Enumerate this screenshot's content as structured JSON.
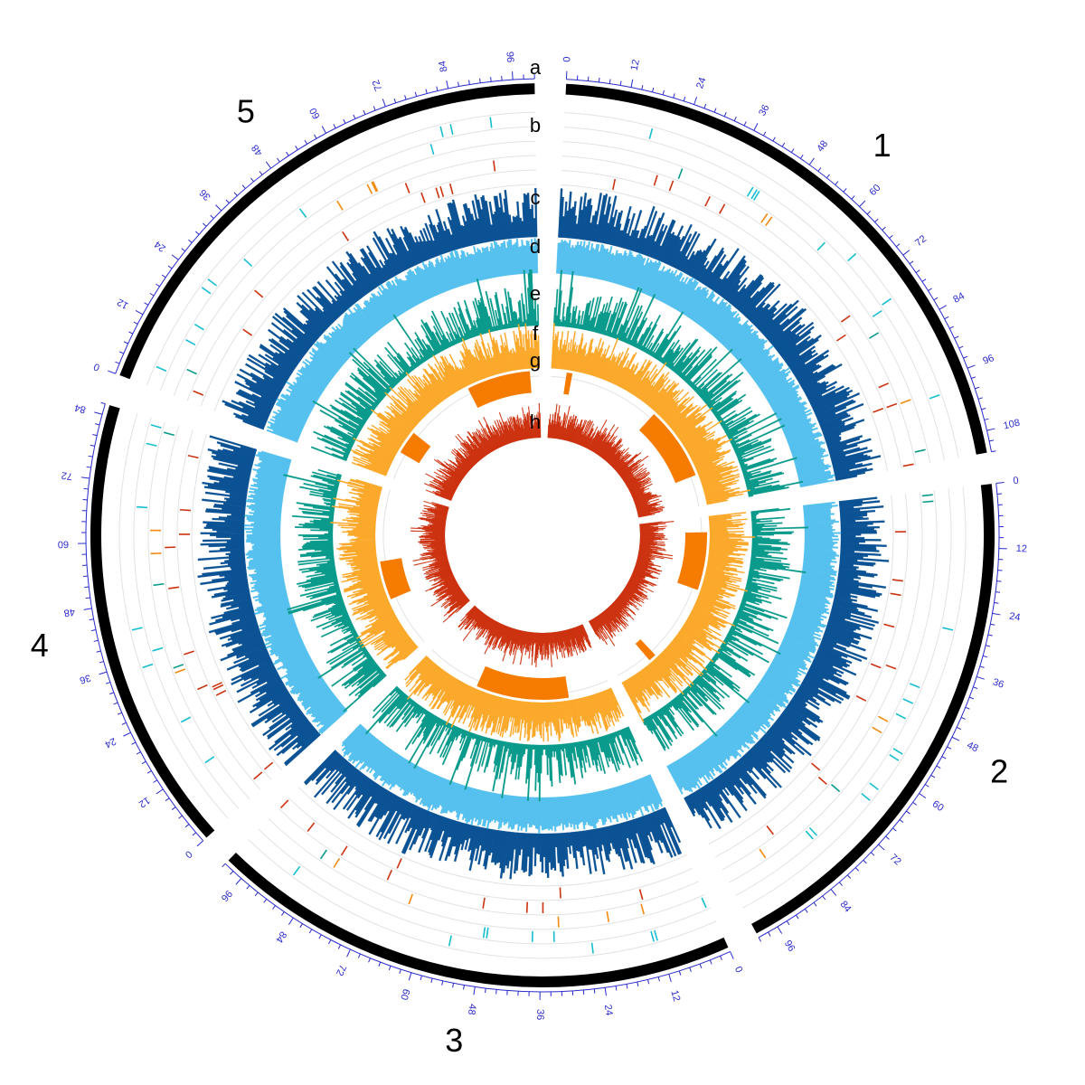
{
  "chart_data": {
    "type": "circos",
    "title": "",
    "chromosomes": [
      {
        "name": "1",
        "length": 112
      },
      {
        "name": "2",
        "length": 100
      },
      {
        "name": "3",
        "length": 100
      },
      {
        "name": "4",
        "length": 86
      },
      {
        "name": "5",
        "length": 100
      }
    ],
    "tick_interval": 12,
    "tick_labels": {
      "1": [
        "0",
        "12",
        "24",
        "36",
        "48",
        "60",
        "72",
        "84",
        "96",
        "108"
      ],
      "2": [
        "0",
        "12",
        "24",
        "36",
        "48",
        "60",
        "72",
        "84",
        "96"
      ],
      "3": [
        "0",
        "12",
        "24",
        "36",
        "48",
        "60",
        "72",
        "84",
        "96"
      ],
      "4": [
        "0",
        "12",
        "24",
        "36",
        "48",
        "60",
        "72",
        "84"
      ],
      "5": [
        "0",
        "12",
        "24",
        "36",
        "48",
        "60",
        "72",
        "84",
        "96"
      ]
    },
    "track_labels": [
      "a",
      "b",
      "c",
      "d",
      "e",
      "f",
      "g",
      "h"
    ],
    "tracks": [
      {
        "id": "a",
        "type": "ideogram",
        "color": "#000000"
      },
      {
        "id": "b",
        "type": "feature-marks",
        "colors": [
          "#17becf",
          "#0a9b8c",
          "#f28a10",
          "#cc3311"
        ]
      },
      {
        "id": "c",
        "type": "histogram",
        "color": "#0b5394"
      },
      {
        "id": "d",
        "type": "histogram",
        "color": "#56c1ee"
      },
      {
        "id": "e",
        "type": "histogram",
        "color": "#0a9b8c"
      },
      {
        "id": "f",
        "type": "histogram",
        "color": "#fba92c"
      },
      {
        "id": "g",
        "type": "highlight-blocks",
        "color": "#f57c00",
        "blocks": [
          {
            "chrom": "1",
            "start": 8,
            "end": 11
          },
          {
            "chrom": "1",
            "start": 58,
            "end": 96
          },
          {
            "chrom": "2",
            "start": 8,
            "end": 38
          },
          {
            "chrom": "2",
            "start": 78,
            "end": 82
          },
          {
            "chrom": "3",
            "start": 22,
            "end": 70
          },
          {
            "chrom": "4",
            "start": 28,
            "end": 48
          },
          {
            "chrom": "5",
            "start": 14,
            "end": 26
          },
          {
            "chrom": "5",
            "start": 62,
            "end": 95
          }
        ]
      },
      {
        "id": "h",
        "type": "histogram",
        "color": "#cc3311"
      }
    ],
    "grid": true,
    "legend": "none"
  }
}
